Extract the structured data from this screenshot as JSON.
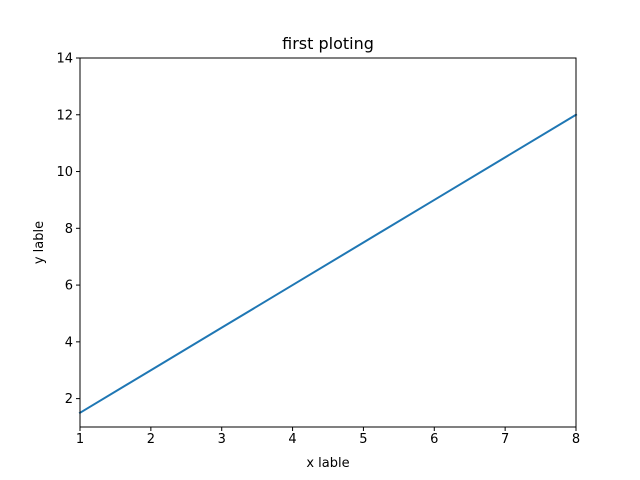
{
  "chart_data": {
    "type": "line",
    "title": "first ploting",
    "xlabel": "x lable",
    "ylabel": "y lable",
    "x": [
      1,
      2,
      3,
      4,
      5,
      6,
      7,
      8
    ],
    "series": [
      {
        "values": [
          1.5,
          3.0,
          4.5,
          6.0,
          7.5,
          9.0,
          10.5,
          12.0
        ],
        "color": "#1f77b4"
      }
    ],
    "xlim": [
      1,
      8
    ],
    "ylim": [
      1.0,
      14.0
    ],
    "xticks": [
      "1",
      "2",
      "3",
      "4",
      "5",
      "6",
      "7",
      "8"
    ],
    "yticks": [
      "2",
      "4",
      "6",
      "8",
      "10",
      "12",
      "14"
    ],
    "grid": false
  }
}
